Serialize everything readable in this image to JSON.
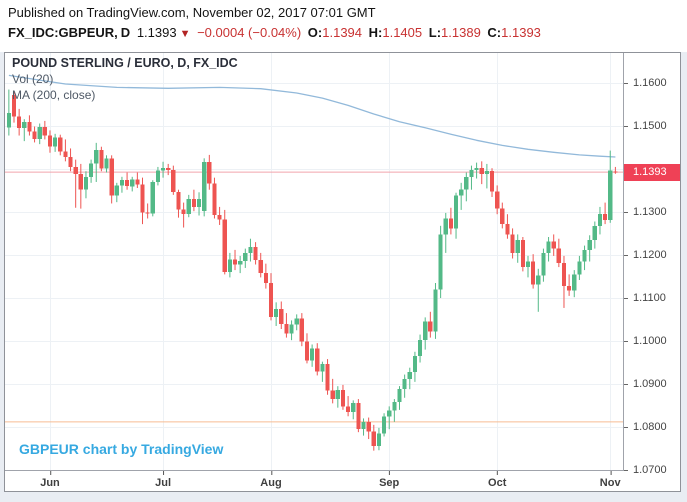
{
  "header": {
    "published_line": "Published on TradingView.com, November 02, 2017 07:01 GMT",
    "symbol_line": {
      "symbol": "FX_IDC:GBPEUR,",
      "interval": "D",
      "last": "1.1393",
      "direction_icon": "▼",
      "change": "−0.0004 (−0.04%)",
      "o_label": "O:",
      "o_value": "1.1394",
      "h_label": "H:",
      "h_value": "1.1405",
      "l_label": "L:",
      "l_value": "1.1389",
      "c_label": "C:",
      "c_value": "1.1393"
    }
  },
  "legend": {
    "title": "POUND STERLING / EURO, D, FX_IDC",
    "vol": "Vol (20)",
    "ma": "MA (200, close)"
  },
  "watermark": "GBPEUR chart by TradingView",
  "price_axis": {
    "ticks": [
      "1.1600",
      "1.1500",
      "1.1400",
      "1.1300",
      "1.1200",
      "1.1100",
      "1.1000",
      "1.0900",
      "1.0800",
      "1.0700"
    ],
    "last_price_label": "1.1393"
  },
  "time_axis": {
    "labels": [
      {
        "text": "Jun",
        "i": 8
      },
      {
        "text": "Jul",
        "i": 30
      },
      {
        "text": "Aug",
        "i": 51
      },
      {
        "text": "Sep",
        "i": 74
      },
      {
        "text": "Oct",
        "i": 95
      },
      {
        "text": "Nov",
        "i": 117
      }
    ]
  },
  "colors": {
    "up": "#53b987",
    "down": "#ee5451",
    "ma": "#92b9da",
    "grid": "#edf1f5",
    "price_line": "#f2a4ac",
    "price_label_bg": "#ef4156",
    "level_orange": "#f6bc93",
    "link_blue": "#36a9e1",
    "header_red": "#c83232"
  },
  "chart_data": {
    "type": "candlestick",
    "title": "POUND STERLING / EURO, D, FX_IDC",
    "symbol": "GBPEUR",
    "interval": "D",
    "ylabel": "price",
    "ylim": [
      1.07,
      1.167
    ],
    "grid": true,
    "x0": 3.86,
    "dx": 5.14,
    "price_line": 1.1393,
    "levels": {
      "orange_support": 1.0812
    },
    "ma200_label": "MA (200, close)",
    "ma200": [
      [
        0,
        1.1618
      ],
      [
        6,
        1.1607
      ],
      [
        11,
        1.1598
      ],
      [
        21,
        1.159
      ],
      [
        31,
        1.1588
      ],
      [
        41,
        1.159
      ],
      [
        49,
        1.1587
      ],
      [
        56,
        1.1577
      ],
      [
        61,
        1.1565
      ],
      [
        66,
        1.1548
      ],
      [
        71,
        1.1528
      ],
      [
        76,
        1.151
      ],
      [
        81,
        1.1496
      ],
      [
        86,
        1.1481
      ],
      [
        91,
        1.1467
      ],
      [
        96,
        1.1455
      ],
      [
        101,
        1.1446
      ],
      [
        106,
        1.1439
      ],
      [
        111,
        1.1433
      ],
      [
        115,
        1.143
      ],
      [
        118,
        1.1428
      ]
    ],
    "candles": [
      [
        "May 22",
        1.1497,
        1.1585,
        1.1478,
        1.153
      ],
      [
        "May 23",
        1.1572,
        1.1581,
        1.1508,
        1.1522
      ],
      [
        "May 24",
        1.1522,
        1.154,
        1.1478,
        1.1495
      ],
      [
        "May 25",
        1.1495,
        1.1516,
        1.1465,
        1.151
      ],
      [
        "May 26",
        1.151,
        1.1525,
        1.1478,
        1.1487
      ],
      [
        "May 29",
        1.1487,
        1.1499,
        1.1462,
        1.147
      ],
      [
        "May 30",
        1.147,
        1.1506,
        1.1458,
        1.1498
      ],
      [
        "May 31",
        1.1498,
        1.1512,
        1.1469,
        1.1478
      ],
      [
        "Jun 1",
        1.1478,
        1.149,
        1.1438,
        1.1452
      ],
      [
        "Jun 2",
        1.1452,
        1.1482,
        1.144,
        1.1473
      ],
      [
        "Jun 5",
        1.1473,
        1.148,
        1.1432,
        1.1441
      ],
      [
        "Jun 6",
        1.1441,
        1.1469,
        1.1418,
        1.1428
      ],
      [
        "Jun 7",
        1.1428,
        1.1448,
        1.1395,
        1.1405
      ],
      [
        "Jun 8",
        1.1405,
        1.1422,
        1.131,
        1.1388
      ],
      [
        "Jun 9",
        1.1388,
        1.1412,
        1.1308,
        1.1352
      ],
      [
        "Jun 12",
        1.1352,
        1.1395,
        1.1332,
        1.1382
      ],
      [
        "Jun 13",
        1.1382,
        1.1422,
        1.1368,
        1.1413
      ],
      [
        "Jun 14",
        1.1413,
        1.1461,
        1.137,
        1.1444
      ],
      [
        "Jun 15",
        1.1444,
        1.1452,
        1.1395,
        1.1401
      ],
      [
        "Jun 16",
        1.1401,
        1.1432,
        1.1392,
        1.1425
      ],
      [
        "Jun 19",
        1.1425,
        1.1432,
        1.132,
        1.1339
      ],
      [
        "Jun 20",
        1.1339,
        1.1368,
        1.1323,
        1.1362
      ],
      [
        "Jun 21",
        1.1362,
        1.1382,
        1.1345,
        1.1374
      ],
      [
        "Jun 22",
        1.1374,
        1.1392,
        1.1352,
        1.136
      ],
      [
        "Jun 23",
        1.136,
        1.1382,
        1.1348,
        1.1376
      ],
      [
        "Jun 26",
        1.1376,
        1.1392,
        1.1356,
        1.1364
      ],
      [
        "Jun 27",
        1.1364,
        1.138,
        1.1272,
        1.1299
      ],
      [
        "Jun 28",
        1.1299,
        1.132,
        1.1285,
        1.1297
      ],
      [
        "Jun 29",
        1.1297,
        1.1374,
        1.129,
        1.137
      ],
      [
        "Jun 30",
        1.137,
        1.1405,
        1.1362,
        1.1397
      ],
      [
        "Jul 3",
        1.1397,
        1.1417,
        1.138,
        1.1403
      ],
      [
        "Jul 4",
        1.1403,
        1.1412,
        1.1386,
        1.1398
      ],
      [
        "Jul 5",
        1.1398,
        1.1408,
        1.134,
        1.1347
      ],
      [
        "Jul 6",
        1.1347,
        1.1352,
        1.1287,
        1.1306
      ],
      [
        "Jul 7",
        1.1306,
        1.1322,
        1.1264,
        1.1295
      ],
      [
        "Jul 10",
        1.1295,
        1.134,
        1.1288,
        1.133
      ],
      [
        "Jul 11",
        1.133,
        1.1352,
        1.1302,
        1.1312
      ],
      [
        "Jul 12",
        1.1312,
        1.1346,
        1.1292,
        1.133
      ],
      [
        "Jul 13",
        1.1302,
        1.1425,
        1.129,
        1.1417
      ],
      [
        "Jul 14",
        1.1417,
        1.1433,
        1.1352,
        1.1367
      ],
      [
        "Jul 17",
        1.1367,
        1.138,
        1.1285,
        1.1293
      ],
      [
        "Jul 18",
        1.1293,
        1.1312,
        1.127,
        1.1283
      ],
      [
        "Jul 19",
        1.1283,
        1.1305,
        1.1155,
        1.1161
      ],
      [
        "Jul 20",
        1.1161,
        1.1205,
        1.1148,
        1.119
      ],
      [
        "Jul 21",
        1.119,
        1.1212,
        1.1165,
        1.1178
      ],
      [
        "Jul 24",
        1.1178,
        1.1198,
        1.1158,
        1.1186
      ],
      [
        "Jul 25",
        1.1186,
        1.1215,
        1.117,
        1.1205
      ],
      [
        "Jul 26",
        1.1205,
        1.1238,
        1.1185,
        1.1219
      ],
      [
        "Jul 27",
        1.1219,
        1.123,
        1.1178,
        1.1188
      ],
      [
        "Jul 28",
        1.1188,
        1.1205,
        1.1148,
        1.1158
      ],
      [
        "Jul 31",
        1.1158,
        1.118,
        1.1122,
        1.1135
      ],
      [
        "Aug 1",
        1.1135,
        1.1158,
        1.1048,
        1.1056
      ],
      [
        "Aug 2",
        1.1056,
        1.109,
        1.1035,
        1.1075
      ],
      [
        "Aug 3",
        1.1075,
        1.1092,
        1.1028,
        1.104
      ],
      [
        "Aug 4",
        1.104,
        1.1065,
        1.1008,
        1.1018
      ],
      [
        "Aug 7",
        1.1018,
        1.1048,
        1.1002,
        1.1038
      ],
      [
        "Aug 8",
        1.1038,
        1.1062,
        1.1025,
        1.1052
      ],
      [
        "Aug 9",
        1.1052,
        1.1065,
        1.0988,
        1.0999
      ],
      [
        "Aug 10",
        1.0999,
        1.1018,
        1.0948,
        1.0955
      ],
      [
        "Aug 11",
        1.0955,
        1.0992,
        1.094,
        1.0983
      ],
      [
        "Aug 14",
        1.0983,
        1.0995,
        1.092,
        1.0929
      ],
      [
        "Aug 15",
        1.0929,
        1.0952,
        1.0905,
        1.0946
      ],
      [
        "Aug 16",
        1.0946,
        1.0958,
        1.0875,
        1.0885
      ],
      [
        "Aug 17",
        1.0885,
        1.0912,
        1.0855,
        1.0865
      ],
      [
        "Aug 18",
        1.0865,
        1.0895,
        1.0845,
        1.0886
      ],
      [
        "Aug 21",
        1.0886,
        1.0898,
        1.084,
        1.0848
      ],
      [
        "Aug 22",
        1.0848,
        1.0872,
        1.0825,
        1.0835
      ],
      [
        "Aug 23",
        1.0835,
        1.0862,
        1.0818,
        1.0856
      ],
      [
        "Aug 24",
        1.0856,
        1.0865,
        1.0788,
        1.0795
      ],
      [
        "Aug 25",
        1.0795,
        1.082,
        1.078,
        1.0812
      ],
      [
        "Aug 28",
        1.0812,
        1.0822,
        1.0772,
        1.079
      ],
      [
        "Aug 29",
        1.079,
        1.0805,
        1.0745,
        1.0756
      ],
      [
        "Aug 30",
        1.0756,
        1.0798,
        1.0746,
        1.0785
      ],
      [
        "Aug 31",
        1.0785,
        1.0832,
        1.0778,
        1.0825
      ],
      [
        "Sep 1",
        1.0825,
        1.0848,
        1.0795,
        1.0838
      ],
      [
        "Sep 4",
        1.0838,
        1.0865,
        1.0812,
        1.0858
      ],
      [
        "Sep 5",
        1.0858,
        1.0895,
        1.084,
        1.0888
      ],
      [
        "Sep 6",
        1.0888,
        1.0922,
        1.0868,
        1.0912
      ],
      [
        "Sep 7",
        1.0912,
        1.0938,
        1.0888,
        1.0928
      ],
      [
        "Sep 8",
        1.0928,
        1.0975,
        1.0905,
        1.0965
      ],
      [
        "Sep 11",
        1.0965,
        1.1015,
        1.095,
        1.1002
      ],
      [
        "Sep 12",
        1.1002,
        1.1055,
        1.098,
        1.1045
      ],
      [
        "Sep 13",
        1.1045,
        1.1068,
        1.1008,
        1.1022
      ],
      [
        "Sep 14",
        1.1022,
        1.1135,
        1.1005,
        1.112
      ],
      [
        "Sep 15",
        1.112,
        1.1268,
        1.11,
        1.1248
      ],
      [
        "Sep 18",
        1.1248,
        1.1298,
        1.1205,
        1.1285
      ],
      [
        "Sep 19",
        1.1285,
        1.131,
        1.1248,
        1.1262
      ],
      [
        "Sep 20",
        1.1262,
        1.1345,
        1.1238,
        1.1338
      ],
      [
        "Sep 21",
        1.1338,
        1.1368,
        1.1305,
        1.1352
      ],
      [
        "Sep 22",
        1.1352,
        1.1392,
        1.1325,
        1.1382
      ],
      [
        "Sep 25",
        1.1382,
        1.1408,
        1.1352,
        1.1398
      ],
      [
        "Sep 26",
        1.1398,
        1.1415,
        1.1378,
        1.1402
      ],
      [
        "Sep 27",
        1.1402,
        1.1418,
        1.1365,
        1.1388
      ],
      [
        "Sep 28",
        1.1388,
        1.1412,
        1.1355,
        1.1395
      ],
      [
        "Sep 29",
        1.1395,
        1.1402,
        1.1335,
        1.1348
      ],
      [
        "Oct 2",
        1.1348,
        1.1362,
        1.1295,
        1.1308
      ],
      [
        "Oct 3",
        1.1308,
        1.1322,
        1.1262,
        1.1272
      ],
      [
        "Oct 4",
        1.1272,
        1.1295,
        1.1238,
        1.1248
      ],
      [
        "Oct 5",
        1.1248,
        1.1262,
        1.1192,
        1.1205
      ],
      [
        "Oct 6",
        1.1205,
        1.1248,
        1.1182,
        1.1235
      ],
      [
        "Oct 9",
        1.1235,
        1.1242,
        1.1162,
        1.1172
      ],
      [
        "Oct 10",
        1.1172,
        1.1198,
        1.1148,
        1.1185
      ],
      [
        "Oct 11",
        1.1185,
        1.1202,
        1.1122,
        1.1132
      ],
      [
        "Oct 12",
        1.1132,
        1.1168,
        1.1068,
        1.1152
      ],
      [
        "Oct 13",
        1.1152,
        1.1215,
        1.1138,
        1.1205
      ],
      [
        "Oct 16",
        1.1205,
        1.1242,
        1.1185,
        1.1232
      ],
      [
        "Oct 17",
        1.1232,
        1.1248,
        1.1198,
        1.1215
      ],
      [
        "Oct 18",
        1.1215,
        1.1238,
        1.1172,
        1.1182
      ],
      [
        "Oct 19",
        1.1182,
        1.1198,
        1.1077,
        1.1128
      ],
      [
        "Oct 20",
        1.1128,
        1.1155,
        1.1105,
        1.1118
      ],
      [
        "Oct 23",
        1.1118,
        1.1165,
        1.1102,
        1.1155
      ],
      [
        "Oct 24",
        1.1155,
        1.1198,
        1.1142,
        1.1185
      ],
      [
        "Oct 25",
        1.1185,
        1.1222,
        1.1165,
        1.1212
      ],
      [
        "Oct 26",
        1.1212,
        1.1246,
        1.1185,
        1.1235
      ],
      [
        "Oct 27",
        1.1235,
        1.1278,
        1.1215,
        1.1268
      ],
      [
        "Oct 30",
        1.1268,
        1.1312,
        1.1248,
        1.1295
      ],
      [
        "Oct 31",
        1.1295,
        1.1322,
        1.1272,
        1.1282
      ],
      [
        "Nov 1",
        1.1282,
        1.1443,
        1.1275,
        1.1397
      ],
      [
        "Nov 2",
        1.1394,
        1.1405,
        1.1389,
        1.1393
      ]
    ]
  }
}
